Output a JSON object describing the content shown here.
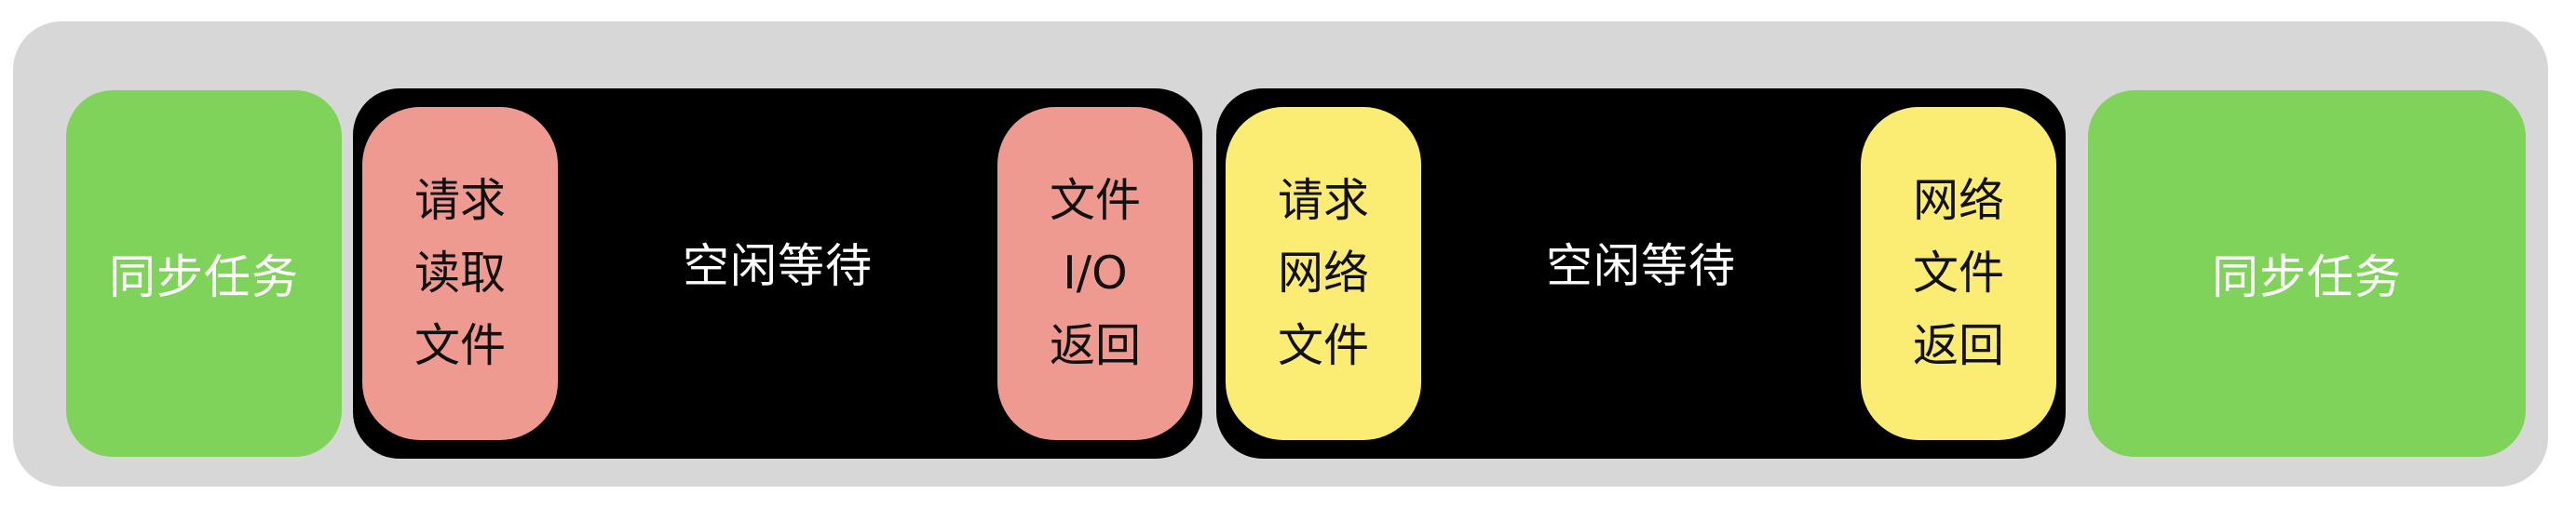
{
  "colors": {
    "background_track": "#d7d7d7",
    "sync_task": "#7fd35a",
    "idle_wait": "#000000",
    "file_io": "#ee9a90",
    "network": "#fbec74"
  },
  "blocks": {
    "sync_left": {
      "label": "同步任务"
    },
    "file_wait": {
      "request": "请求\n读取\n文件",
      "idle": "空闲等待",
      "return": "文件\nI/O\n返回"
    },
    "network_wait": {
      "request": "请求\n网络\n文件",
      "idle": "空闲等待",
      "return": "网络\n文件\n返回"
    },
    "sync_right": {
      "label": "同步任务"
    }
  }
}
